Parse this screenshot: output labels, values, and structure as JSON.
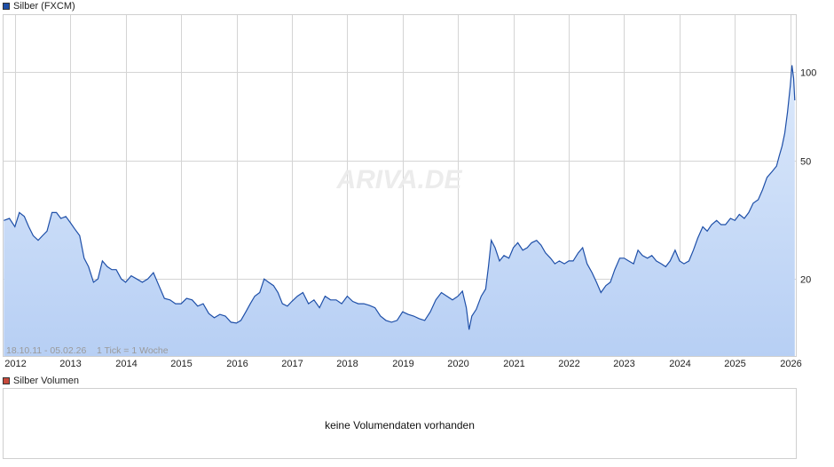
{
  "legend_main": {
    "label": "Silber (FXCM)",
    "color": "#1e4fa8"
  },
  "legend_volume": {
    "label": "Silber Volumen",
    "color": "#c84a3c"
  },
  "watermark": "ARIVA.DE",
  "info_text": "18.10.11 - 05.02.26    1 Tick = 1 Woche",
  "volume_message": "keine Volumendaten vorhanden",
  "colors": {
    "line": "#1e4fa8",
    "fill_top": "#dce9fb",
    "fill_bottom": "#b7cff4",
    "grid": "#d4d4d4"
  },
  "chart_data": {
    "type": "area",
    "title": "Silber (FXCM)",
    "y_scale": "log",
    "ylim": [
      11,
      155
    ],
    "xlim": [
      2011.795,
      2026.1
    ],
    "y_ticks": [
      20,
      50,
      100
    ],
    "x_ticks": [
      "2012",
      "2013",
      "2014",
      "2015",
      "2016",
      "2017",
      "2018",
      "2019",
      "2020",
      "2021",
      "2022",
      "2023",
      "2024",
      "2025",
      "2026"
    ],
    "grid": true,
    "series": [
      {
        "x": [
          2011.8,
          2011.9,
          2012.0,
          2012.08,
          2012.17,
          2012.25,
          2012.33,
          2012.42,
          2012.5,
          2012.58,
          2012.67,
          2012.75,
          2012.83,
          2012.92,
          2013.0,
          2013.08,
          2013.17,
          2013.25,
          2013.33,
          2013.42,
          2013.5,
          2013.58,
          2013.67,
          2013.75,
          2013.83,
          2013.92,
          2014.0,
          2014.1,
          2014.2,
          2014.3,
          2014.4,
          2014.5,
          2014.6,
          2014.7,
          2014.8,
          2014.9,
          2015.0,
          2015.1,
          2015.2,
          2015.3,
          2015.4,
          2015.5,
          2015.6,
          2015.7,
          2015.8,
          2015.9,
          2016.0,
          2016.08,
          2016.17,
          2016.25,
          2016.33,
          2016.42,
          2016.5,
          2016.58,
          2016.67,
          2016.75,
          2016.83,
          2016.92,
          2017.0,
          2017.1,
          2017.2,
          2017.3,
          2017.4,
          2017.5,
          2017.6,
          2017.7,
          2017.8,
          2017.9,
          2018.0,
          2018.1,
          2018.2,
          2018.3,
          2018.4,
          2018.5,
          2018.6,
          2018.7,
          2018.8,
          2018.9,
          2019.0,
          2019.1,
          2019.2,
          2019.3,
          2019.4,
          2019.5,
          2019.6,
          2019.7,
          2019.8,
          2019.9,
          2020.0,
          2020.08,
          2020.15,
          2020.2,
          2020.25,
          2020.33,
          2020.42,
          2020.5,
          2020.55,
          2020.6,
          2020.67,
          2020.75,
          2020.83,
          2020.92,
          2021.0,
          2021.08,
          2021.17,
          2021.25,
          2021.33,
          2021.42,
          2021.5,
          2021.58,
          2021.67,
          2021.75,
          2021.83,
          2021.92,
          2022.0,
          2022.08,
          2022.17,
          2022.25,
          2022.33,
          2022.42,
          2022.5,
          2022.58,
          2022.67,
          2022.75,
          2022.83,
          2022.92,
          2023.0,
          2023.08,
          2023.17,
          2023.25,
          2023.33,
          2023.42,
          2023.5,
          2023.58,
          2023.67,
          2023.75,
          2023.83,
          2023.92,
          2024.0,
          2024.08,
          2024.17,
          2024.25,
          2024.33,
          2024.42,
          2024.5,
          2024.58,
          2024.67,
          2024.75,
          2024.83,
          2024.92,
          2025.0,
          2025.08,
          2025.17,
          2025.25,
          2025.33,
          2025.42,
          2025.5,
          2025.58,
          2025.67,
          2025.75,
          2025.8,
          2025.85,
          2025.9,
          2025.95,
          2026.0,
          2026.03,
          2026.06,
          2026.08
        ],
        "y": [
          31.5,
          32.0,
          30.0,
          33.5,
          32.5,
          30.0,
          28.0,
          27.0,
          28.0,
          29.0,
          33.5,
          33.5,
          32.0,
          32.5,
          31.0,
          29.5,
          28.0,
          23.5,
          22.0,
          19.5,
          20.0,
          23.0,
          22.0,
          21.5,
          21.5,
          20.0,
          19.5,
          20.5,
          20.0,
          19.5,
          20.0,
          21.0,
          19.0,
          17.2,
          17.0,
          16.5,
          16.5,
          17.2,
          17.0,
          16.2,
          16.5,
          15.3,
          14.8,
          15.2,
          15.0,
          14.3,
          14.2,
          14.5,
          15.5,
          16.5,
          17.5,
          18.0,
          20.0,
          19.5,
          19.0,
          18.0,
          16.5,
          16.2,
          16.8,
          17.5,
          18.0,
          16.5,
          17.0,
          16.0,
          17.5,
          17.0,
          17.0,
          16.5,
          17.5,
          16.8,
          16.5,
          16.5,
          16.3,
          16.0,
          15.0,
          14.5,
          14.3,
          14.5,
          15.5,
          15.2,
          15.0,
          14.7,
          14.5,
          15.5,
          17.0,
          18.0,
          17.5,
          17.0,
          17.5,
          18.2,
          16.0,
          13.5,
          15.0,
          15.8,
          17.5,
          18.5,
          22.0,
          27.0,
          25.5,
          23.0,
          24.0,
          23.5,
          25.5,
          26.5,
          25.0,
          25.5,
          26.5,
          27.0,
          26.0,
          24.5,
          23.5,
          22.5,
          23.0,
          22.5,
          23.0,
          23.0,
          24.5,
          25.5,
          22.5,
          21.0,
          19.5,
          18.0,
          19.0,
          19.5,
          21.5,
          23.5,
          23.5,
          23.0,
          22.5,
          25.0,
          24.0,
          23.5,
          24.0,
          23.0,
          22.5,
          22.0,
          23.0,
          25.0,
          23.0,
          22.5,
          23.0,
          25.0,
          27.5,
          30.0,
          29.0,
          30.5,
          31.5,
          30.5,
          30.5,
          32.0,
          31.5,
          33.0,
          32.0,
          33.5,
          36.0,
          37.0,
          40.0,
          44.0,
          46.0,
          48.0,
          52.0,
          56.0,
          62.0,
          73.0,
          90.0,
          105.0,
          95.0,
          80.0
        ]
      }
    ]
  }
}
